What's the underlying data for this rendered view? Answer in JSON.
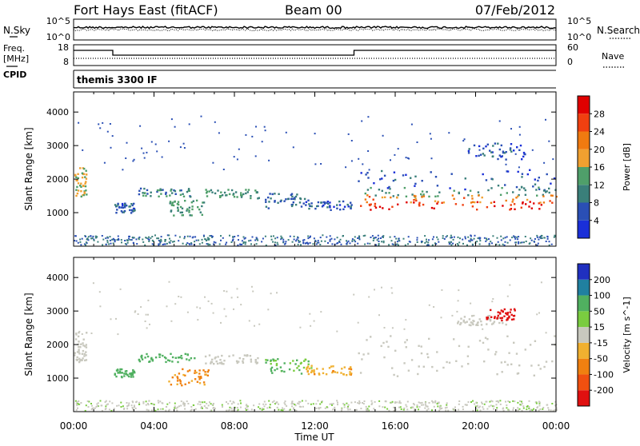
{
  "header": {
    "station": "Fort Hays East (fitACF)",
    "beam": "Beam 00",
    "date": "07/Feb/2012"
  },
  "noise_panel": {
    "left_label": "N.Sky",
    "right_label": "N.Search",
    "left_ticks": [
      "10^5",
      "10^0"
    ],
    "right_ticks": [
      "10^5",
      "10^0"
    ]
  },
  "freq_panel": {
    "left_label_1": "Freq.",
    "left_label_2": "[MHz]",
    "cpid_label": "CPID",
    "left_ticks": [
      "18",
      "8"
    ],
    "right_ticks": [
      "60",
      "0"
    ],
    "right_label": "Nave"
  },
  "cpid_panel": {
    "text": "themis 3300 IF"
  },
  "colors": {
    "power": [
      "#1a2fd8",
      "#2a4fb5",
      "#3a7f7a",
      "#4f9f6a",
      "#f0a030",
      "#f07a10",
      "#f04010",
      "#e00000"
    ],
    "velocity": [
      "#2030c0",
      "#2080a0",
      "#50b060",
      "#7acc40",
      "#c8c8be",
      "#f0b030",
      "#f08010",
      "#f05010",
      "#e01010"
    ]
  },
  "chart_data": [
    {
      "type": "heatmap",
      "title": "",
      "xlabel": "",
      "ylabel": "Slant Range [km]",
      "ylim": [
        0,
        4600
      ],
      "y_ticks": [
        "4000",
        "3000",
        "2000",
        "1000"
      ],
      "x_range_hours": [
        0,
        24
      ],
      "colorbar_label": "Power [dB]",
      "colorbar_ticks": [
        "28",
        "24",
        "20",
        "16",
        "12",
        "8",
        "4"
      ],
      "regions": [
        {
          "t0": 0.0,
          "t1": 0.6,
          "r0": 1500,
          "r1": 2400,
          "level": 16
        },
        {
          "t0": 3.2,
          "t1": 5.8,
          "r0": 1500,
          "r1": 1750,
          "level": 10
        },
        {
          "t0": 2.0,
          "t1": 3.0,
          "r0": 1000,
          "r1": 1300,
          "level": 6
        },
        {
          "t0": 4.7,
          "t1": 6.5,
          "r0": 900,
          "r1": 1400,
          "level": 12
        },
        {
          "t0": 6.5,
          "t1": 9.2,
          "r0": 1450,
          "r1": 1720,
          "level": 12
        },
        {
          "t0": 9.5,
          "t1": 11.8,
          "r0": 1150,
          "r1": 1600,
          "level": 8
        },
        {
          "t0": 11.5,
          "t1": 13.8,
          "r0": 1100,
          "r1": 1400,
          "level": 6
        },
        {
          "t0": 14.0,
          "t1": 24.0,
          "r0": 1700,
          "r1": 2300,
          "level": 6
        },
        {
          "t0": 14.0,
          "t1": 24.0,
          "r0": 1500,
          "r1": 1800,
          "level": 12
        },
        {
          "t0": 14.0,
          "t1": 24.0,
          "r0": 1300,
          "r1": 1550,
          "level": 22
        },
        {
          "t0": 14.2,
          "t1": 23.5,
          "r0": 1100,
          "r1": 1350,
          "level": 28
        },
        {
          "t0": 19.5,
          "t1": 22.5,
          "r0": 2600,
          "r1": 3100,
          "level": 6
        }
      ]
    },
    {
      "type": "heatmap",
      "title": "",
      "xlabel": "Time UT",
      "ylabel": "Slant Range [km]",
      "ylim": [
        0,
        4600
      ],
      "y_ticks": [
        "4000",
        "3000",
        "2000",
        "1000"
      ],
      "x_ticks": [
        "00:00",
        "04:00",
        "08:00",
        "12:00",
        "16:00",
        "20:00",
        "00:00"
      ],
      "colorbar_label": "Velocity [m s^-1]",
      "colorbar_ticks": [
        "200",
        "100",
        "50",
        "15",
        "-15",
        "-50",
        "-100",
        "-200"
      ],
      "regions": [
        {
          "t0": 0.0,
          "t1": 0.6,
          "r0": 1500,
          "r1": 2400,
          "level": 0
        },
        {
          "t0": 3.2,
          "t1": 6.0,
          "r0": 1500,
          "r1": 1750,
          "level": 60
        },
        {
          "t0": 2.0,
          "t1": 3.0,
          "r0": 1050,
          "r1": 1300,
          "level": 60
        },
        {
          "t0": 4.7,
          "t1": 6.7,
          "r0": 800,
          "r1": 1300,
          "level": -60
        },
        {
          "t0": 6.5,
          "t1": 9.2,
          "r0": 1450,
          "r1": 1720,
          "level": 0
        },
        {
          "t0": 9.5,
          "t1": 11.8,
          "r0": 1150,
          "r1": 1600,
          "level": 30
        },
        {
          "t0": 11.5,
          "t1": 13.8,
          "r0": 1100,
          "r1": 1400,
          "level": -40
        },
        {
          "t0": 14.0,
          "t1": 24.0,
          "r0": 1050,
          "r1": 2300,
          "level": 0
        },
        {
          "t0": 19.0,
          "t1": 21.5,
          "r0": 2600,
          "r1": 2900,
          "level": 0
        },
        {
          "t0": 20.5,
          "t1": 22.0,
          "r0": 2750,
          "r1": 3100,
          "level": -200
        }
      ]
    }
  ]
}
